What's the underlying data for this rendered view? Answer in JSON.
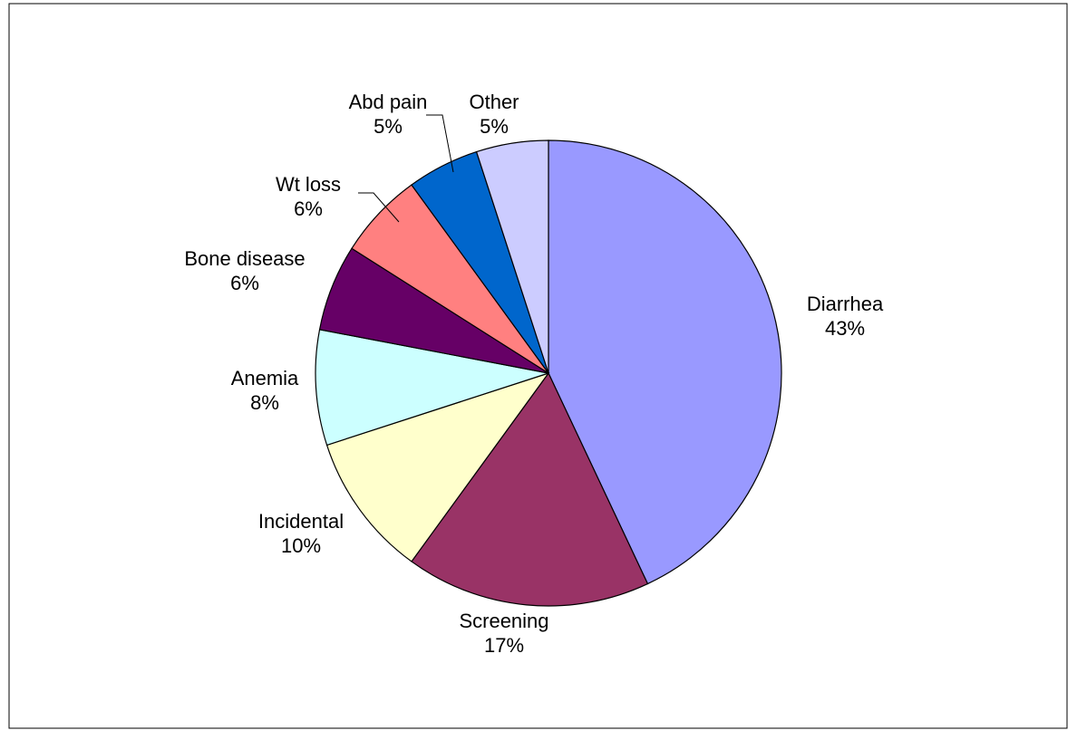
{
  "chart_data": {
    "type": "pie",
    "categories": [
      "Diarrhea",
      "Screening",
      "Incidental",
      "Anemia",
      "Bone disease",
      "Wt loss",
      "Abd pain",
      "Other"
    ],
    "values": [
      43,
      17,
      10,
      8,
      6,
      6,
      5,
      5
    ],
    "value_labels": [
      "43%",
      "17%",
      "10%",
      "8%",
      "6%",
      "6%",
      "5%",
      "5%"
    ],
    "colors": [
      "#9999ff",
      "#993366",
      "#ffffcc",
      "#ccffff",
      "#660066",
      "#ff8080",
      "#0066cc",
      "#ccccff"
    ]
  }
}
